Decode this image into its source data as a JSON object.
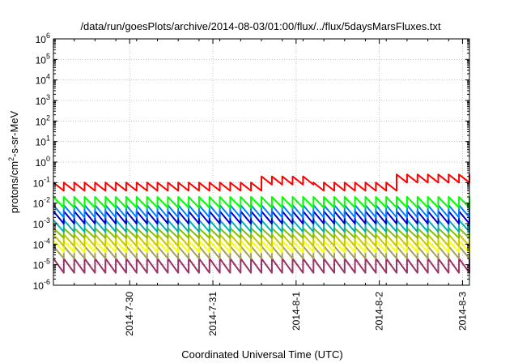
{
  "chart_data": {
    "type": "line",
    "title": "/data/run/goesPlots/archive/2014-08-03/01:00/flux/../flux/5daysMarsFluxes.txt",
    "xlabel": "Coordinated Universal Time (UTC)",
    "ylabel": {
      "prefix": "protons/cm",
      "sup": "2",
      "suffix": "-s-sr-MeV"
    },
    "yscale": "log",
    "ylim": [
      "1e-6",
      "1e6"
    ],
    "xlim": [
      "2014-07-29T02:00",
      "2014-08-03T02:00"
    ],
    "grid": true,
    "legend": "none",
    "yticks": [
      {
        "base": "10",
        "exp": "6"
      },
      {
        "base": "10",
        "exp": "5"
      },
      {
        "base": "10",
        "exp": "4"
      },
      {
        "base": "10",
        "exp": "3"
      },
      {
        "base": "10",
        "exp": "2"
      },
      {
        "base": "10",
        "exp": "1"
      },
      {
        "base": "10",
        "exp": "0"
      },
      {
        "base": "10",
        "exp": "-1"
      },
      {
        "base": "10",
        "exp": "-2"
      },
      {
        "base": "10",
        "exp": "-3"
      },
      {
        "base": "10",
        "exp": "-4"
      },
      {
        "base": "10",
        "exp": "-5"
      },
      {
        "base": "10",
        "exp": "-6"
      }
    ],
    "xticks": [
      {
        "label": "2014-7-30",
        "date": "2014-07-30T00:00"
      },
      {
        "label": "2014-7-31",
        "date": "2014-07-31T00:00"
      },
      {
        "label": "2014-8-1",
        "date": "2014-08-01T00:00"
      },
      {
        "label": "2014-8-2",
        "date": "2014-08-02T00:00"
      },
      {
        "label": "2014-8-3",
        "date": "2014-08-03T00:00"
      }
    ],
    "sawtooth_period_hours": 3,
    "series": [
      {
        "color": "#ff0000",
        "low": "0.04",
        "high": "0.1",
        "bump": {
          "start": "2014-07-31T12:00",
          "end": "2014-08-01T04:00",
          "high": "0.2"
        },
        "bump2": {
          "start": "2014-08-02T04:00",
          "end": "2014-08-03T02:00",
          "high": "0.25"
        }
      },
      {
        "color": "#00ff00",
        "low": "0.006",
        "high": "0.02"
      },
      {
        "color": "#0080ff",
        "low": "0.002",
        "high": "0.008"
      },
      {
        "color": "#0000cc",
        "low": "0.001",
        "high": "0.004"
      },
      {
        "color": "#00b0b0",
        "low": "0.0004",
        "high": "0.0015"
      },
      {
        "color": "#80c000",
        "low": "0.0002",
        "high": "0.0006"
      },
      {
        "color": "#c8c800",
        "low": "0.00008",
        "high": "0.0003"
      },
      {
        "color": "#ffff00",
        "low": "0.00004",
        "high": "0.00015"
      },
      {
        "color": "#a0a060",
        "low": "0.00002",
        "high": "0.00008"
      },
      {
        "color": "#993366",
        "low": "0.000004",
        "high": "0.00002"
      }
    ]
  }
}
